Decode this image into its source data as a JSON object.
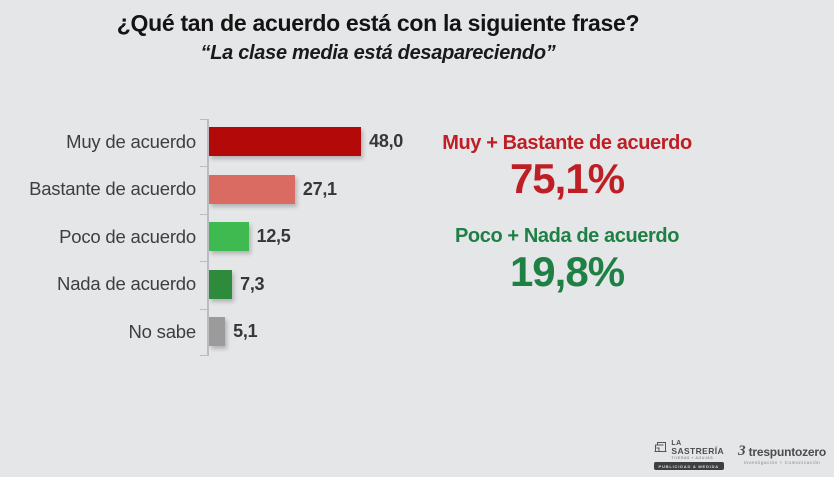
{
  "header": {
    "title": "¿Qué tan de acuerdo está con la siguiente frase?",
    "subtitle": "“La clase media está desapareciendo”"
  },
  "chart_data": {
    "type": "bar",
    "orientation": "horizontal",
    "title": "¿Qué tan de acuerdo está con la siguiente frase?",
    "subtitle": "“La clase media está desapareciendo”",
    "categories": [
      "Muy de acuerdo",
      "Bastante de acuerdo",
      "Poco de acuerdo",
      "Nada de acuerdo",
      "No sabe"
    ],
    "values": [
      48.0,
      27.1,
      12.5,
      7.3,
      5.1
    ],
    "value_labels": [
      "48,0",
      "27,1",
      "12,5",
      "7,3",
      "5,1"
    ],
    "bar_colors": [
      "#b40909",
      "#d96b63",
      "#3eba50",
      "#2e8b3c",
      "#9b9b9b"
    ],
    "xlim": [
      0,
      50
    ],
    "grid": false,
    "legend": "none",
    "background": "#e5e6e8"
  },
  "aggregates": {
    "agree": {
      "label": "Muy + Bastante de acuerdo",
      "value": "75,1%",
      "color": "#be1e24"
    },
    "disagree": {
      "label": "Poco + Nada de acuerdo",
      "value": "19,8%",
      "color": "#1e8045"
    }
  },
  "footer": {
    "sastreria": {
      "line1": "LA",
      "line2": "SASTRERÍA",
      "line3": "TIJERAS + AGUJAS",
      "badge": "PUBLICIDAD A MEDIDA"
    },
    "trespuntozero": {
      "mark": "3",
      "name": "trespuntozero",
      "tagline": "Investigación + Comunicación"
    }
  }
}
